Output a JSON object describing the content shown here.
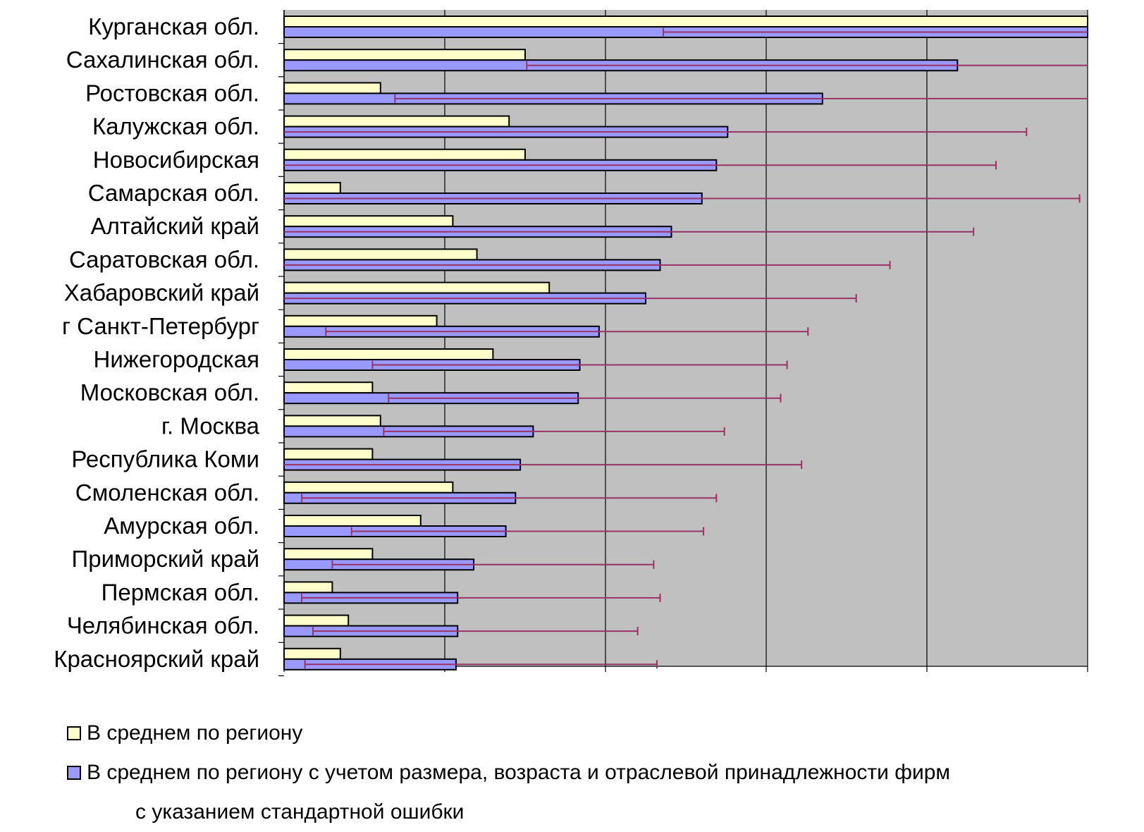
{
  "chart_data": {
    "type": "bar",
    "orientation": "horizontal",
    "categories": [
      "Курганская обл.",
      "Сахалинская обл.",
      "Ростовская обл.",
      "Калужская обл.",
      "Новосибирская",
      "Самарская обл.",
      "Алтайский край",
      "Саратовская обл.",
      "Хабаровский край",
      "г Санкт-Петербург",
      "Нижегородская",
      "Московская обл.",
      "г. Москва",
      "Республика Коми",
      "Смоленская обл.",
      "Амурская обл.",
      "Приморский край",
      "Пермская обл.",
      "Челябинская обл.",
      "Красноярский край"
    ],
    "series": [
      {
        "name": "В среднем по региону",
        "color": "#ffffcc",
        "values": [
          5.0,
          1.5,
          0.6,
          1.4,
          1.5,
          0.35,
          1.05,
          1.2,
          1.65,
          0.95,
          1.3,
          0.55,
          0.6,
          0.55,
          1.05,
          0.85,
          0.55,
          0.3,
          0.4,
          0.35
        ]
      },
      {
        "name": "В среднем по региону с учетом размера, возраста и отраслевой принадлежности фирм",
        "color": "#9999ff",
        "values": [
          5.1,
          4.19,
          3.35,
          2.76,
          2.69,
          2.6,
          2.41,
          2.34,
          2.25,
          1.96,
          1.84,
          1.83,
          1.55,
          1.47,
          1.44,
          1.38,
          1.18,
          1.08,
          1.08,
          1.07
        ],
        "error_low": [
          2.74,
          2.68,
          2.66,
          2.77,
          2.74,
          2.87,
          2.87,
          2.65,
          2.56,
          1.7,
          1.29,
          1.18,
          0.93,
          1.59,
          1.33,
          0.96,
          0.88,
          0.97,
          0.9,
          0.94
        ],
        "error_high": [
          2.74,
          2.68,
          2.66,
          1.86,
          1.74,
          2.35,
          1.88,
          1.43,
          1.31,
          1.3,
          1.29,
          1.26,
          1.19,
          1.75,
          1.25,
          1.23,
          1.12,
          1.26,
          1.12,
          1.25
        ]
      }
    ],
    "error_bar_color": "#993366",
    "xlim": [
      0,
      5
    ],
    "x_gridlines": [
      0,
      1,
      2,
      3,
      4,
      5
    ],
    "tick_labels_visible": false,
    "plot_background": "#c0c0c0",
    "grid": true,
    "legend_position": "bottom",
    "legend_note": "с указанием стандартной ошибки"
  }
}
